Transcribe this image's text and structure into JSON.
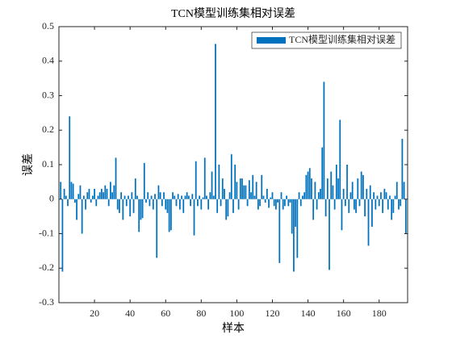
{
  "chart_data": {
    "type": "bar",
    "title": "TCN模型训练集相对误差",
    "xlabel": "样本",
    "ylabel": "误差",
    "xlim": [
      0,
      196
    ],
    "xticks": [
      20,
      40,
      60,
      80,
      100,
      120,
      140,
      160,
      180
    ],
    "ylim": [
      -0.3,
      0.5
    ],
    "yticks": [
      -0.3,
      -0.2,
      -0.1,
      0,
      0.1,
      0.2,
      0.3,
      0.4,
      0.5
    ],
    "legend": "northeast",
    "grid": false,
    "series": [
      {
        "name": "TCN模型训练集相对误差",
        "color": "#0072bd",
        "values": [
          0.05,
          -0.21,
          0.03,
          0.01,
          -0.02,
          0.24,
          0.05,
          0.045,
          -0.01,
          -0.06,
          0.015,
          0.04,
          -0.1,
          0.01,
          -0.03,
          0.02,
          0.03,
          -0.01,
          0.01,
          0.03,
          -0.02,
          0.01,
          0.02,
          0.03,
          0.02,
          0.04,
          0.03,
          -0.02,
          0.05,
          0.02,
          0.04,
          0.12,
          -0.03,
          -0.04,
          0.02,
          -0.06,
          0.01,
          -0.02,
          0.01,
          -0.05,
          0.02,
          -0.04,
          0.06,
          0.01,
          -0.095,
          -0.06,
          -0.055,
          0.105,
          -0.01,
          0.02,
          -0.02,
          0.01,
          -0.03,
          0.015,
          -0.17,
          0.04,
          0.02,
          -0.02,
          0.02,
          -0.03,
          -0.04,
          -0.095,
          -0.09,
          0.02,
          0.01,
          -0.02,
          0.015,
          -0.03,
          0.01,
          -0.04,
          0.01,
          0.02,
          0.01,
          -0.02,
          0.015,
          -0.105,
          0.11,
          -0.02,
          0.01,
          -0.03,
          0.005,
          0.12,
          0.01,
          -0.03,
          0.02,
          0.08,
          0.01,
          0.45,
          -0.04,
          0.1,
          -0.02,
          0.06,
          0.03,
          -0.06,
          -0.05,
          0.02,
          0.13,
          -0.04,
          0.1,
          0.05,
          -0.03,
          0.06,
          0.06,
          0.04,
          0.04,
          -0.02,
          0.055,
          0.02,
          0.07,
          0.01,
          0.05,
          -0.03,
          -0.02,
          0.07,
          0.01,
          -0.01,
          0.03,
          -0.025,
          0.005,
          0.02,
          -0.02,
          -0.03,
          -0.01,
          -0.185,
          0.02,
          -0.03,
          -0.02,
          0.01,
          -0.02,
          -0.01,
          -0.1,
          -0.21,
          -0.08,
          -0.17,
          0.02,
          -0.02,
          0.01,
          0.02,
          0.07,
          0.08,
          0.09,
          0.06,
          -0.06,
          0.05,
          -0.03,
          0.02,
          0.03,
          0.15,
          0.34,
          -0.05,
          0.06,
          -0.205,
          0.08,
          0.04,
          -0.03,
          0.1,
          0.06,
          0.23,
          -0.09,
          0.03,
          -0.02,
          0.1,
          -0.04,
          0.02,
          0.05,
          -0.03,
          -0.04,
          0.06,
          -0.02,
          0.08,
          0.07,
          -0.05,
          0.03,
          -0.135,
          0.04,
          -0.08,
          0.02,
          -0.03,
          0.01,
          -0.02,
          0.02,
          -0.04,
          0.03,
          0.02,
          -0.03,
          0.01,
          -0.06,
          -0.04,
          0.01,
          0.05,
          -0.03,
          -0.02,
          0.175,
          0.05,
          -0.1
        ]
      }
    ]
  }
}
